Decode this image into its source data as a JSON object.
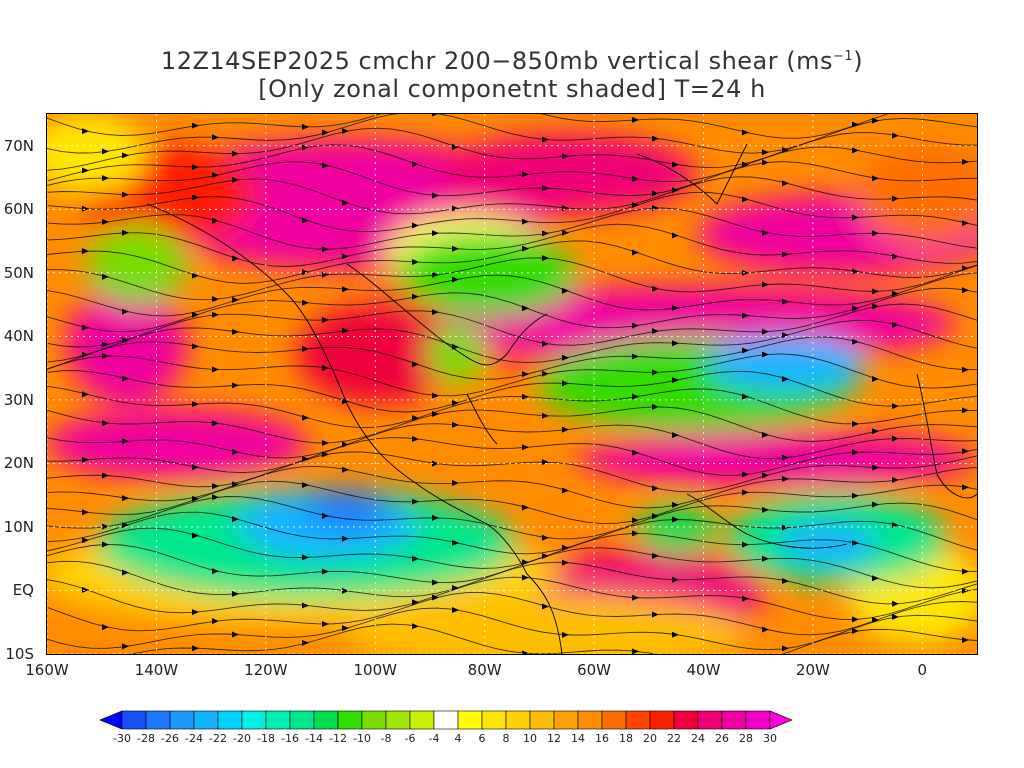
{
  "title": {
    "line1": "12Z14SEP2025 cmchr 200−850mb vertical shear (ms",
    "line1_unit_sup": "−1",
    "line1_close": ")",
    "line2": "[Only zonal componetnt shaded] T=24 h"
  },
  "map": {
    "lat_labels": [
      "70N",
      "60N",
      "50N",
      "40N",
      "30N",
      "20N",
      "10N",
      "EQ",
      "10S"
    ],
    "lat_values": [
      70,
      60,
      50,
      40,
      30,
      20,
      10,
      0,
      -10
    ],
    "lon_labels": [
      "160W",
      "140W",
      "120W",
      "100W",
      "80W",
      "60W",
      "40W",
      "20W",
      "0"
    ],
    "lon_values": [
      -160,
      -140,
      -120,
      -100,
      -80,
      -60,
      -40,
      -20,
      0
    ],
    "lat_range": [
      -10,
      75
    ],
    "lon_range": [
      -160,
      10
    ]
  },
  "colorbar": {
    "labels": [
      "-30",
      "-28",
      "-26",
      "-24",
      "-22",
      "-20",
      "-18",
      "-16",
      "-14",
      "-12",
      "-10",
      "-8",
      "-6",
      "-4",
      "4",
      "6",
      "8",
      "10",
      "12",
      "14",
      "16",
      "18",
      "20",
      "22",
      "24",
      "26",
      "28",
      "30"
    ],
    "colors": [
      "#0000ff",
      "#1450ff",
      "#1e78ff",
      "#1e96ff",
      "#14b4ff",
      "#00d2ff",
      "#00f0e6",
      "#00f0b4",
      "#00e68c",
      "#00dc50",
      "#32dc00",
      "#78dc00",
      "#a0e600",
      "#c8f000",
      "#ffffff",
      "#ffff00",
      "#ffe600",
      "#ffd200",
      "#ffbe00",
      "#ffa000",
      "#ff8c00",
      "#ff6e00",
      "#ff4600",
      "#ff1e00",
      "#f0003c",
      "#f00078",
      "#f000a0",
      "#f000c8",
      "#ff00dc"
    ]
  }
}
